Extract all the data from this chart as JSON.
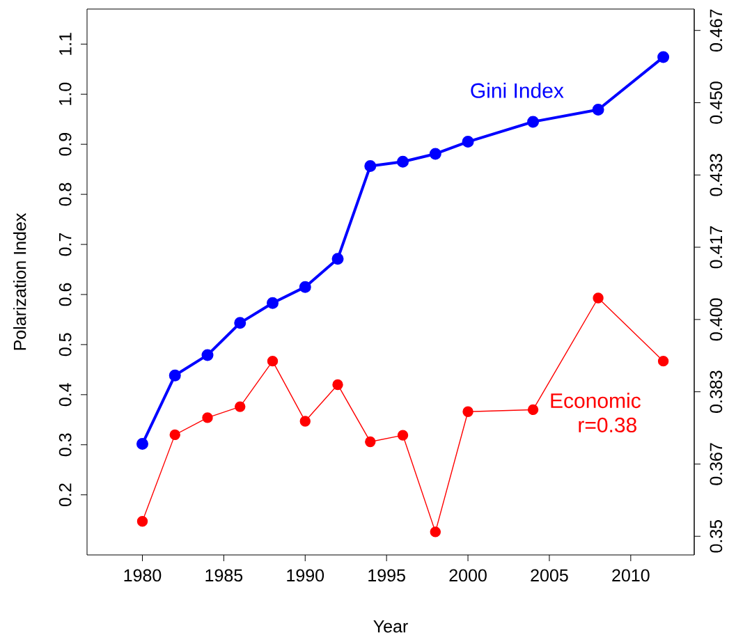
{
  "chart_data": {
    "type": "line",
    "xlabel": "Year",
    "ylabel": "Polarization Index",
    "x": [
      1980,
      1982,
      1984,
      1986,
      1988,
      1990,
      1992,
      1994,
      1996,
      1998,
      2000,
      2004,
      2008,
      2012
    ],
    "series": [
      {
        "name": "Gini Index",
        "color": "#0000ff",
        "axis": "y2",
        "values": [
          0.3713,
          0.3871,
          0.3918,
          0.3992,
          0.4038,
          0.4075,
          0.414,
          0.4354,
          0.4364,
          0.4382,
          0.441,
          0.4456,
          0.4484,
          0.4605
        ]
      },
      {
        "name": "Economic",
        "color": "#ff0000",
        "values": [
          0.147,
          0.32,
          0.354,
          0.376,
          0.467,
          0.347,
          0.42,
          0.306,
          0.319,
          0.126,
          0.366,
          0.37,
          0.593,
          0.467
        ]
      }
    ],
    "annotations": [
      "r=0.38"
    ],
    "marker": "circle",
    "line_style": "solid",
    "xlim": [
      1976.6,
      2013.9
    ],
    "xticks": [
      1980,
      1985,
      1990,
      1995,
      2000,
      2005,
      2010
    ],
    "ylim": [
      0.08,
      1.17
    ],
    "yticks": [
      {
        "value": 0.2,
        "label": "0.2"
      },
      {
        "value": 0.3,
        "label": "0.3"
      },
      {
        "value": 0.4,
        "label": "0.4"
      },
      {
        "value": 0.5,
        "label": "0.5"
      },
      {
        "value": 0.6,
        "label": "0.6"
      },
      {
        "value": 0.7,
        "label": "0.7"
      },
      {
        "value": 0.8,
        "label": "0.8"
      },
      {
        "value": 0.9,
        "label": "0.9"
      },
      {
        "value": 1.0,
        "label": "1.0"
      },
      {
        "value": 1.1,
        "label": "1.1"
      }
    ],
    "y2lim": [
      0.3457,
      0.4716
    ],
    "y2ticks": [
      0.35,
      {
        "value": 0.36667,
        "label": "0.367"
      },
      {
        "value": 0.38333,
        "label": "0.383"
      },
      {
        "value": 0.4,
        "label": "0.400"
      },
      {
        "value": 0.41667,
        "label": "0.417"
      },
      {
        "value": 0.43333,
        "label": "0.433"
      },
      {
        "value": 0.45,
        "label": "0.450"
      },
      {
        "value": 0.46667,
        "label": "0.467"
      }
    ]
  }
}
